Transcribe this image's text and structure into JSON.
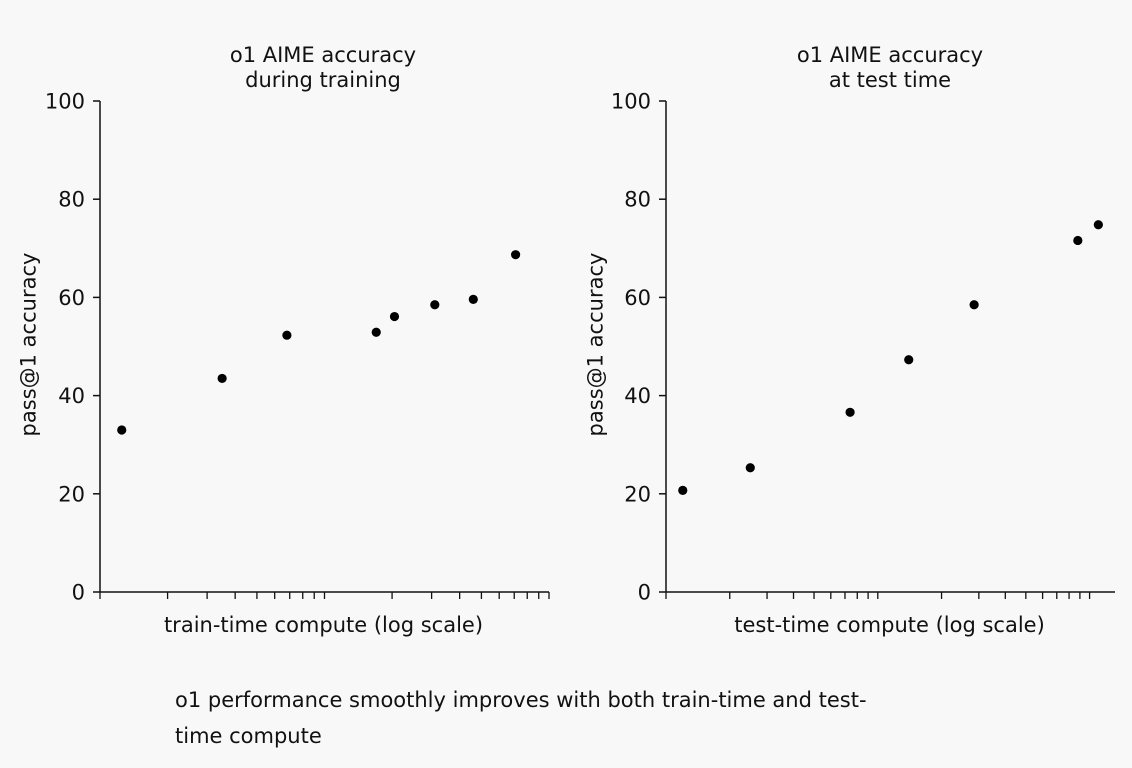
{
  "chart_data": [
    {
      "type": "scatter",
      "title": [
        "o1 AIME accuracy",
        "during training"
      ],
      "xlabel": "train-time compute (log scale)",
      "ylabel": "pass@1 accuracy",
      "xscale": "log",
      "ylim": [
        0,
        100
      ],
      "yticks": [
        "0",
        "20",
        "40",
        "60",
        "80",
        "100"
      ],
      "grid": false,
      "color": "#000000",
      "series": [
        {
          "points": [
            {
              "x": 1.25,
              "y": 33
            },
            {
              "x": 3.5,
              "y": 43.5
            },
            {
              "x": 6.8,
              "y": 52.3
            },
            {
              "x": 17,
              "y": 52.9
            },
            {
              "x": 20.5,
              "y": 56.1
            },
            {
              "x": 31,
              "y": 58.5
            },
            {
              "x": 46,
              "y": 59.6
            },
            {
              "x": 71,
              "y": 68.7
            }
          ]
        }
      ]
    },
    {
      "type": "scatter",
      "title": [
        "o1 AIME accuracy",
        "at test time"
      ],
      "xlabel": "test-time compute (log scale)",
      "ylabel": "pass@1 accuracy",
      "xscale": "log",
      "ylim": [
        0,
        100
      ],
      "yticks": [
        "0",
        "20",
        "40",
        "60",
        "80",
        "100"
      ],
      "grid": false,
      "color": "#000000",
      "series": [
        {
          "points": [
            {
              "x": 1.2,
              "y": 20.7
            },
            {
              "x": 2.5,
              "y": 25.3
            },
            {
              "x": 7.4,
              "y": 36.6
            },
            {
              "x": 14,
              "y": 47.3
            },
            {
              "x": 28.5,
              "y": 58.5
            },
            {
              "x": 88,
              "y": 71.6
            },
            {
              "x": 110,
              "y": 74.8
            }
          ]
        }
      ]
    }
  ],
  "caption": "o1 performance smoothly improves with both train-time and test-time compute"
}
